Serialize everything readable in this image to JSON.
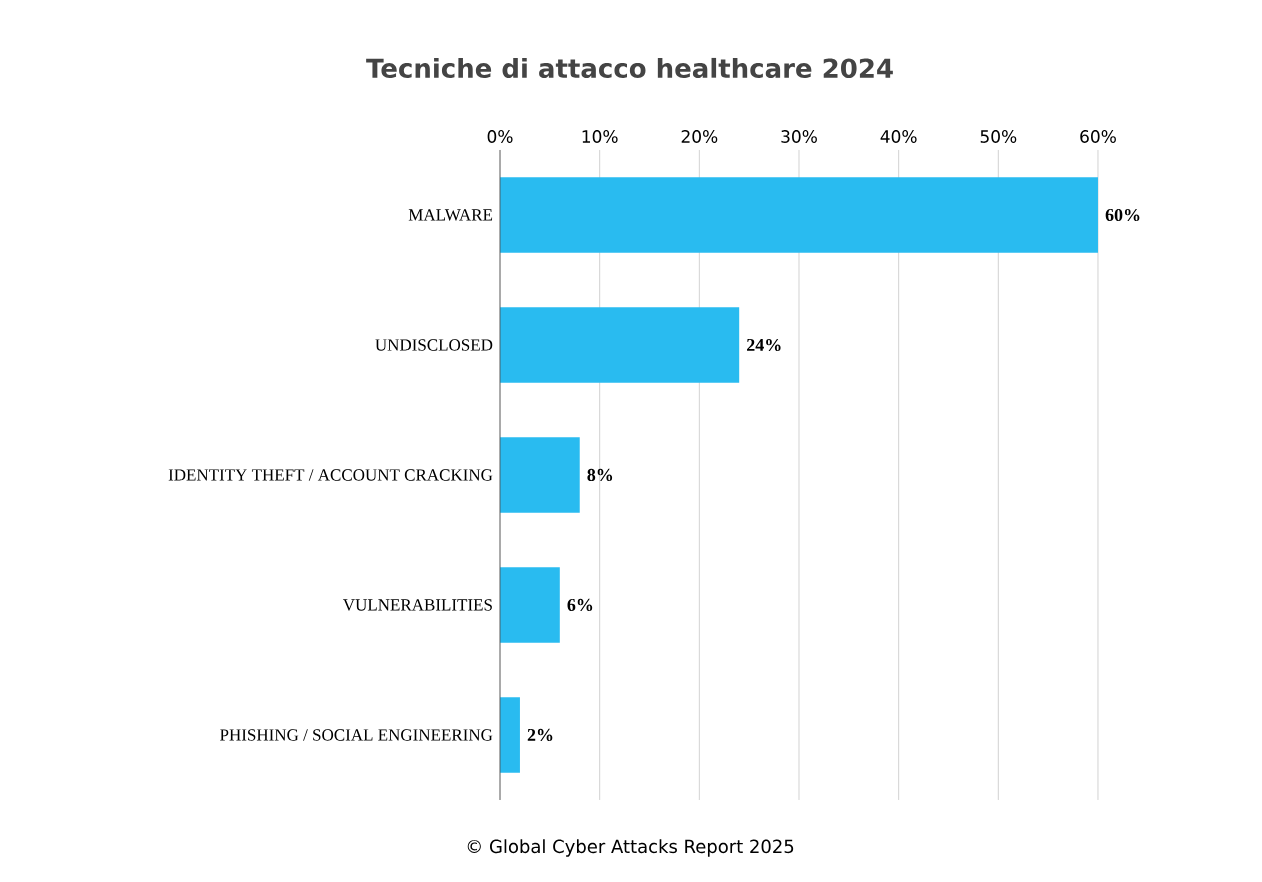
{
  "chart_data": {
    "type": "bar",
    "orientation": "horizontal",
    "title": "Tecniche di attacco healthcare 2024",
    "categories": [
      "MALWARE",
      "UNDISCLOSED",
      "IDENTITY THEFT / ACCOUNT CRACKING",
      "VULNERABILITIES",
      "PHISHING / SOCIAL ENGINEERING"
    ],
    "values": [
      60,
      24,
      8,
      6,
      2
    ],
    "value_labels": [
      "60%",
      "24%",
      "8%",
      "6%",
      "2%"
    ],
    "color": "#29bbf0",
    "xlim": [
      0,
      60
    ],
    "xticks": [
      {
        "value": 0,
        "label": "0%"
      },
      {
        "value": 10,
        "label": "10%"
      },
      {
        "value": 20,
        "label": "20%"
      },
      {
        "value": 30,
        "label": "30%"
      },
      {
        "value": 40,
        "label": "40%"
      },
      {
        "value": 50,
        "label": "50%"
      },
      {
        "value": 60,
        "label": "60%"
      }
    ],
    "grid": "x",
    "annotations": [
      "© Global Cyber Attacks Report 2025"
    ]
  }
}
